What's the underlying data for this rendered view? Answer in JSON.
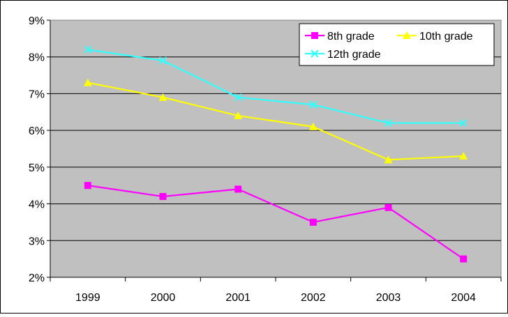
{
  "chart_data": {
    "type": "line",
    "title": "",
    "xlabel": "",
    "ylabel": "",
    "categories": [
      "1999",
      "2000",
      "2001",
      "2002",
      "2003",
      "2004"
    ],
    "ylim": [
      0.02,
      0.09
    ],
    "yticks": [
      0.02,
      0.03,
      0.04,
      0.05,
      0.06,
      0.07,
      0.08,
      0.09
    ],
    "ytick_labels": [
      "2%",
      "3%",
      "4%",
      "5%",
      "6%",
      "7%",
      "8%",
      "9%"
    ],
    "grid": true,
    "legend_position": "top-right",
    "plot_background": "#c0c0c0",
    "series": [
      {
        "name": "8th grade",
        "values": [
          0.045,
          0.042,
          0.044,
          0.035,
          0.039,
          0.025
        ],
        "color": "#ff00ff",
        "marker": "square"
      },
      {
        "name": "10th grade",
        "values": [
          0.073,
          0.069,
          0.064,
          0.061,
          0.052,
          0.053
        ],
        "color": "#ffff00",
        "marker": "triangle"
      },
      {
        "name": "12th grade",
        "values": [
          0.082,
          0.079,
          0.069,
          0.067,
          0.062,
          0.062
        ],
        "color": "#33ffff",
        "marker": "x"
      }
    ]
  }
}
